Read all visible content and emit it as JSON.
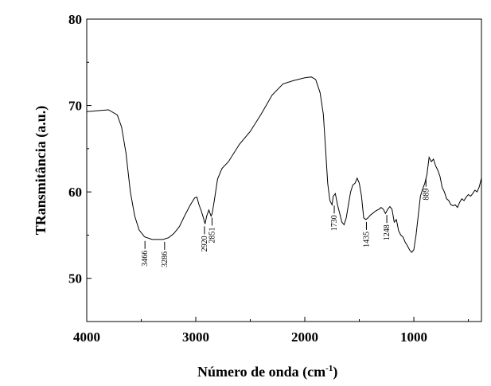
{
  "chart_data": {
    "type": "line",
    "title": "",
    "xlabel": "Número de onda (cm",
    "xlabel_sup": "-1",
    "xlabel_close": ")",
    "ylabel": "TRansmitância (a.u.)",
    "xlim": [
      4000,
      380
    ],
    "ylim": [
      45,
      80
    ],
    "xticks": [
      4000,
      3000,
      2000,
      1000
    ],
    "yticks": [
      50,
      60,
      70,
      80
    ],
    "grid": false,
    "series": [
      {
        "points": [
          [
            4000,
            69.3
          ],
          [
            3900,
            69.4
          ],
          [
            3800,
            69.5
          ],
          [
            3720,
            68.9
          ],
          [
            3680,
            67.5
          ],
          [
            3640,
            64.5
          ],
          [
            3600,
            60.0
          ],
          [
            3560,
            57.2
          ],
          [
            3520,
            55.6
          ],
          [
            3470,
            54.8
          ],
          [
            3400,
            54.5
          ],
          [
            3300,
            54.5
          ],
          [
            3250,
            54.7
          ],
          [
            3200,
            55.2
          ],
          [
            3150,
            56.0
          ],
          [
            3100,
            57.3
          ],
          [
            3050,
            58.5
          ],
          [
            3010,
            59.3
          ],
          [
            2990,
            59.4
          ],
          [
            2970,
            58.5
          ],
          [
            2950,
            57.8
          ],
          [
            2930,
            57.0
          ],
          [
            2915,
            56.3
          ],
          [
            2900,
            57.2
          ],
          [
            2880,
            57.9
          ],
          [
            2860,
            57.2
          ],
          [
            2850,
            57.5
          ],
          [
            2830,
            59.0
          ],
          [
            2800,
            61.5
          ],
          [
            2760,
            62.7
          ],
          [
            2700,
            63.5
          ],
          [
            2600,
            65.5
          ],
          [
            2500,
            67.0
          ],
          [
            2400,
            69.0
          ],
          [
            2300,
            71.2
          ],
          [
            2200,
            72.5
          ],
          [
            2100,
            72.9
          ],
          [
            2000,
            73.2
          ],
          [
            1940,
            73.3
          ],
          [
            1900,
            73.0
          ],
          [
            1860,
            71.5
          ],
          [
            1830,
            69.0
          ],
          [
            1810,
            65.0
          ],
          [
            1790,
            61.0
          ],
          [
            1770,
            59.0
          ],
          [
            1750,
            58.5
          ],
          [
            1740,
            59.5
          ],
          [
            1720,
            59.8
          ],
          [
            1700,
            58.5
          ],
          [
            1680,
            57.5
          ],
          [
            1660,
            56.5
          ],
          [
            1640,
            56.2
          ],
          [
            1620,
            57.0
          ],
          [
            1600,
            58.5
          ],
          [
            1580,
            60.0
          ],
          [
            1560,
            60.8
          ],
          [
            1540,
            61.0
          ],
          [
            1520,
            61.6
          ],
          [
            1500,
            61.0
          ],
          [
            1480,
            59.5
          ],
          [
            1460,
            57.0
          ],
          [
            1440,
            56.8
          ],
          [
            1420,
            57.0
          ],
          [
            1400,
            57.3
          ],
          [
            1380,
            57.5
          ],
          [
            1350,
            57.8
          ],
          [
            1320,
            58.0
          ],
          [
            1300,
            58.2
          ],
          [
            1280,
            58.0
          ],
          [
            1260,
            57.5
          ],
          [
            1240,
            58.0
          ],
          [
            1220,
            58.3
          ],
          [
            1200,
            58.0
          ],
          [
            1180,
            56.5
          ],
          [
            1160,
            56.8
          ],
          [
            1140,
            55.5
          ],
          [
            1120,
            55.0
          ],
          [
            1100,
            54.8
          ],
          [
            1080,
            54.2
          ],
          [
            1060,
            53.8
          ],
          [
            1040,
            53.3
          ],
          [
            1020,
            53.0
          ],
          [
            1000,
            53.3
          ],
          [
            980,
            55.0
          ],
          [
            960,
            57.2
          ],
          [
            940,
            59.5
          ],
          [
            920,
            60.3
          ],
          [
            900,
            61.0
          ],
          [
            880,
            62.0
          ],
          [
            860,
            64.0
          ],
          [
            840,
            63.5
          ],
          [
            820,
            63.8
          ],
          [
            800,
            63.0
          ],
          [
            780,
            62.5
          ],
          [
            760,
            61.8
          ],
          [
            740,
            60.5
          ],
          [
            720,
            60.0
          ],
          [
            700,
            59.2
          ],
          [
            680,
            59.0
          ],
          [
            660,
            58.5
          ],
          [
            640,
            58.4
          ],
          [
            620,
            58.5
          ],
          [
            600,
            58.2
          ],
          [
            580,
            58.8
          ],
          [
            560,
            59.2
          ],
          [
            540,
            59.0
          ],
          [
            520,
            59.4
          ],
          [
            500,
            59.7
          ],
          [
            480,
            59.5
          ],
          [
            460,
            59.8
          ],
          [
            440,
            60.2
          ],
          [
            420,
            60.0
          ],
          [
            400,
            60.6
          ],
          [
            380,
            61.6
          ]
        ]
      }
    ],
    "annotations": [
      {
        "label": "3466",
        "x": 3466,
        "y": 54.6
      },
      {
        "label": "3286",
        "x": 3286,
        "y": 54.5
      },
      {
        "label": "2920",
        "x": 2920,
        "y": 56.3
      },
      {
        "label": "2851",
        "x": 2851,
        "y": 57.3
      },
      {
        "label": "1730",
        "x": 1730,
        "y": 58.7
      },
      {
        "label": "1435",
        "x": 1435,
        "y": 56.8
      },
      {
        "label": "1248",
        "x": 1248,
        "y": 57.6
      },
      {
        "label": "889",
        "x": 889,
        "y": 61.8
      }
    ]
  }
}
